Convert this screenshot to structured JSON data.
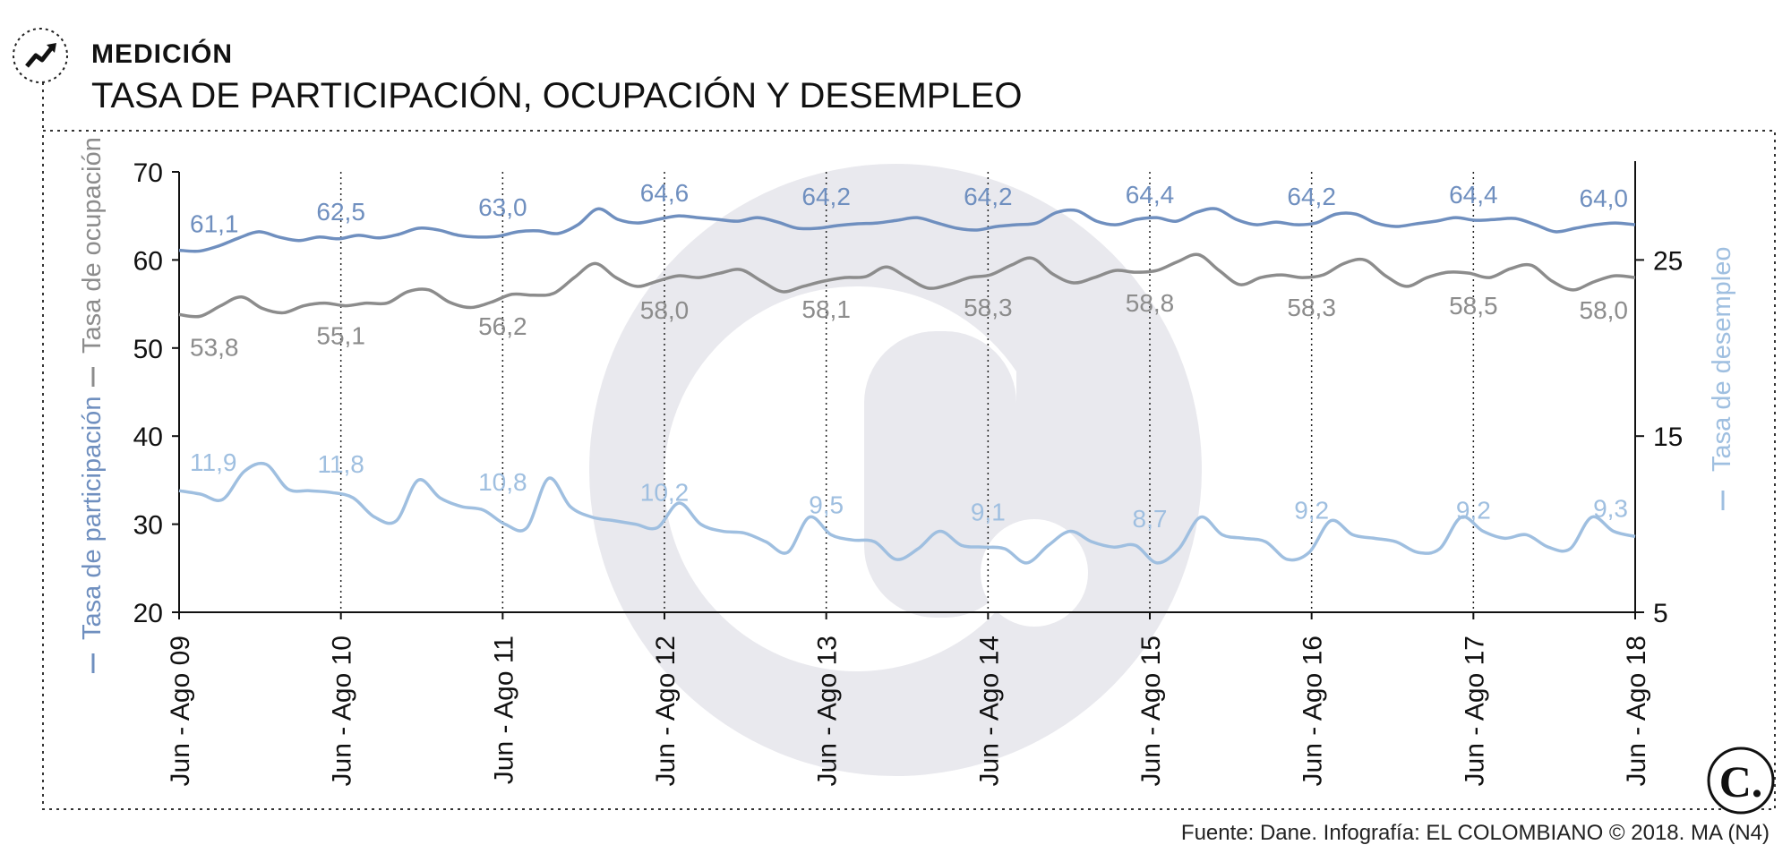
{
  "header": {
    "kicker": "MEDICIÓN",
    "title": "TASA DE PARTICIPACIÓN, OCUPACIÓN Y DESEMPLEO",
    "icon": "trend-up-icon"
  },
  "source": "Fuente: Dane. Infografía: EL COLOMBIANO © 2018. MA (N4)",
  "logo": {
    "text": "C.",
    "icon": "el-colombiano-logo-icon"
  },
  "colors": {
    "participacion": "#6f8fbf",
    "ocupacion": "#8c8c8c",
    "desempleo": "#9fbfe0",
    "watermark": "#e9e9ee"
  },
  "chart_data": {
    "type": "line",
    "x_categories": [
      "Jun - Ago 09",
      "Jun - Ago 10",
      "Jun - Ago 11",
      "Jun - Ago 12",
      "Jun - Ago 13",
      "Jun - Ago 14",
      "Jun - Ago 15",
      "Jun - Ago 16",
      "Jun - Ago 17",
      "Jun - Ago 18"
    ],
    "y_left": {
      "label_participacion": "Tasa de participación",
      "label_ocupacion": "Tasa de ocupación",
      "range": [
        20,
        70
      ],
      "ticks": [
        20,
        30,
        40,
        50,
        60,
        70
      ]
    },
    "y_right": {
      "label": "Tasa de desempleo",
      "range": [
        5,
        30
      ],
      "ticks": [
        5,
        15,
        25
      ]
    },
    "series": [
      {
        "name": "Tasa de participación",
        "axis": "left",
        "labels": [
          61.1,
          62.5,
          63.0,
          64.6,
          64.2,
          64.2,
          64.4,
          64.2,
          64.4,
          64.0
        ],
        "label_text": [
          "61,1",
          "62,5",
          "63,0",
          "64,6",
          "64,2",
          "64,2",
          "64,4",
          "64,2",
          "64,4",
          "64,0"
        ],
        "values": [
          61.1,
          61.0,
          61.6,
          62.5,
          63.2,
          62.6,
          62.2,
          62.6,
          62.4,
          62.8,
          62.5,
          62.9,
          63.6,
          63.4,
          62.8,
          62.6,
          62.7,
          63.2,
          63.3,
          63.0,
          64.0,
          65.8,
          64.6,
          64.2,
          64.6,
          65.0,
          64.8,
          64.6,
          64.4,
          64.8,
          64.3,
          63.6,
          63.6,
          63.9,
          64.1,
          64.2,
          64.5,
          64.8,
          64.2,
          63.6,
          63.4,
          63.8,
          64.0,
          64.2,
          65.4,
          65.6,
          64.4,
          64.0,
          64.6,
          64.8,
          64.4,
          65.4,
          65.8,
          64.6,
          64.0,
          64.3,
          64.0,
          64.2,
          65.2,
          65.2,
          64.2,
          63.8,
          64.1,
          64.4,
          64.8,
          64.5,
          64.6,
          64.7,
          64.0,
          63.2,
          63.6,
          64.0,
          64.2,
          64.0
        ]
      },
      {
        "name": "Tasa de ocupación",
        "axis": "left",
        "labels": [
          53.8,
          55.1,
          56.2,
          58.0,
          58.1,
          58.3,
          58.8,
          58.3,
          58.5,
          58.0
        ],
        "label_text": [
          "53,8",
          "55,1",
          "56,2",
          "58,0",
          "58,1",
          "58,3",
          "58,8",
          "58,3",
          "58,5",
          "58,0"
        ],
        "values": [
          53.8,
          53.6,
          54.8,
          55.8,
          54.5,
          54.0,
          54.8,
          55.1,
          54.8,
          55.1,
          55.1,
          56.4,
          56.6,
          55.2,
          54.6,
          55.2,
          56.1,
          56.0,
          56.2,
          58.0,
          59.6,
          58.0,
          57.0,
          57.6,
          58.2,
          58.0,
          58.5,
          58.9,
          57.6,
          56.4,
          57.0,
          57.6,
          58.0,
          58.1,
          59.2,
          58.0,
          56.8,
          57.2,
          58.0,
          58.3,
          59.4,
          60.2,
          58.4,
          57.4,
          58.0,
          58.8,
          58.6,
          58.8,
          59.8,
          60.6,
          58.8,
          57.2,
          58.0,
          58.3,
          58.0,
          58.3,
          59.6,
          60.0,
          58.2,
          57.0,
          58.0,
          58.6,
          58.5,
          58.0,
          59.0,
          59.4,
          57.6,
          56.6,
          57.5,
          58.2,
          58.0
        ]
      },
      {
        "name": "Tasa de desempleo",
        "axis": "right",
        "labels": [
          11.9,
          11.8,
          10.8,
          10.2,
          9.5,
          9.1,
          8.7,
          9.2,
          9.2,
          9.3
        ],
        "label_text": [
          "11,9",
          "11,8",
          "10,8",
          "10,2",
          "9,5",
          "9,1",
          "8,7",
          "9,2",
          "9,2",
          "9,3"
        ],
        "values": [
          11.9,
          11.7,
          11.4,
          13.0,
          13.4,
          12.0,
          11.9,
          11.8,
          11.5,
          10.4,
          10.2,
          12.5,
          11.5,
          11.0,
          10.8,
          10.0,
          9.8,
          12.6,
          11.0,
          10.4,
          10.2,
          10.0,
          9.8,
          11.2,
          10.0,
          9.6,
          9.5,
          9.0,
          8.4,
          10.4,
          9.4,
          9.1,
          9.0,
          8.0,
          8.6,
          9.6,
          8.8,
          8.7,
          8.6,
          7.8,
          8.8,
          9.6,
          9.0,
          8.7,
          8.8,
          7.8,
          8.6,
          10.4,
          9.4,
          9.2,
          9.0,
          8.0,
          8.4,
          10.2,
          9.4,
          9.2,
          9.0,
          8.4,
          8.6,
          10.4,
          9.6,
          9.2,
          9.4,
          8.7,
          8.6,
          10.4,
          9.6,
          9.3
        ]
      }
    ]
  }
}
